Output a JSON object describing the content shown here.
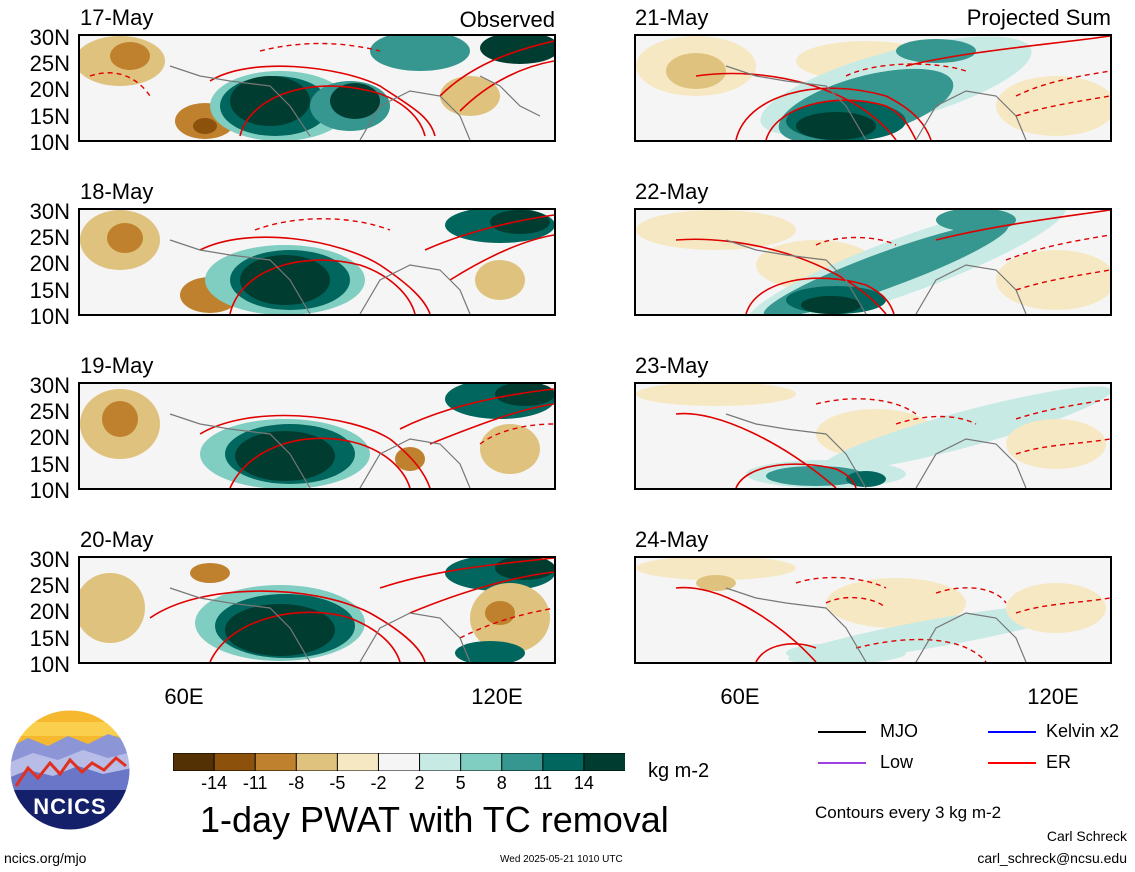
{
  "panels": {
    "left_tag": "Observed",
    "right_tag": "Projected Sum",
    "left_dates": [
      "17-May",
      "18-May",
      "19-May",
      "20-May"
    ],
    "right_dates": [
      "21-May",
      "22-May",
      "23-May",
      "24-May"
    ]
  },
  "axes": {
    "lat_labels": [
      "30N",
      "25N",
      "20N",
      "15N",
      "10N"
    ],
    "lon_labels": [
      "60E",
      "120E"
    ]
  },
  "colorbar": {
    "tick_labels": [
      "-14",
      "-11",
      "-8",
      "-5",
      "-2",
      "2",
      "5",
      "8",
      "11",
      "14"
    ],
    "units": "kg m-2",
    "colors": [
      "#543005",
      "#8c510a",
      "#bf812d",
      "#dfc27d",
      "#f6e8c3",
      "#f5f5f5",
      "#c7eae5",
      "#80cdc1",
      "#35978f",
      "#01665e",
      "#003c30"
    ]
  },
  "title": "1-day PWAT with TC removal",
  "legend": {
    "items": [
      {
        "label": "MJO",
        "color": "#000000"
      },
      {
        "label": "Kelvin x2",
        "color": "#0000ff"
      },
      {
        "label": "Low",
        "color": "#a040e0"
      },
      {
        "label": "ER",
        "color": "#ff0000"
      }
    ],
    "contour_note": "Contours every 3 kg m-2"
  },
  "credits": {
    "author": "Carl Schreck",
    "email": "carl_schreck@ncsu.edu",
    "site": "ncics.org/mjo",
    "timestamp": "Wed 2025-05-21 1010 UTC",
    "logo_text": "NCICS"
  }
}
